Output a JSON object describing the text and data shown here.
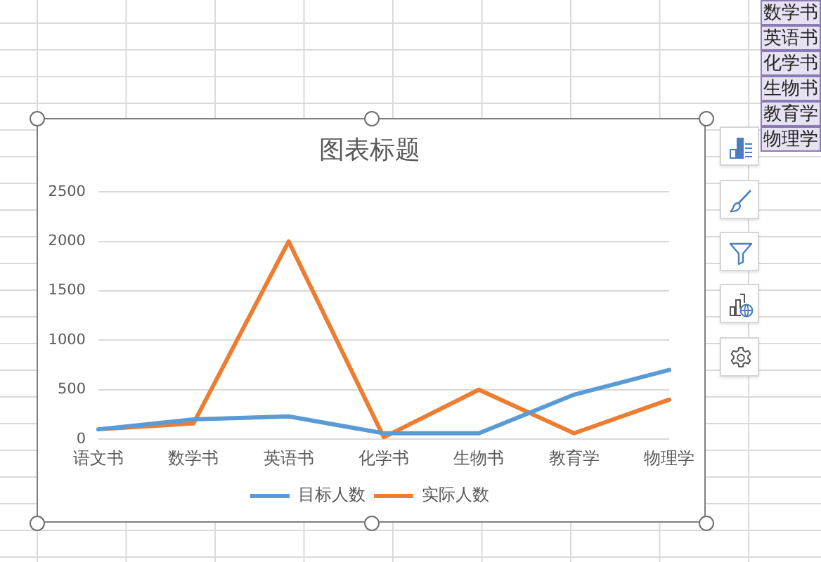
{
  "chart_data": {
    "type": "line",
    "title": "图表标题",
    "categories": [
      "语文书",
      "数学书",
      "英语书",
      "化学书",
      "生物书",
      "教育学",
      "物理学"
    ],
    "series": [
      {
        "name": "目标人数",
        "color": "#5b9bd5",
        "values": [
          100,
          200,
          230,
          60,
          60,
          450,
          700
        ]
      },
      {
        "name": "实际人数",
        "color": "#ed7d31",
        "values": [
          100,
          160,
          2000,
          20,
          500,
          60,
          400
        ]
      }
    ],
    "ylim": [
      0,
      2500
    ],
    "yticks": [
      0,
      500,
      1000,
      1500,
      2000,
      2500
    ],
    "grid": "y",
    "legend": "bottom",
    "marker": "none",
    "line_style": "solid"
  }
}
